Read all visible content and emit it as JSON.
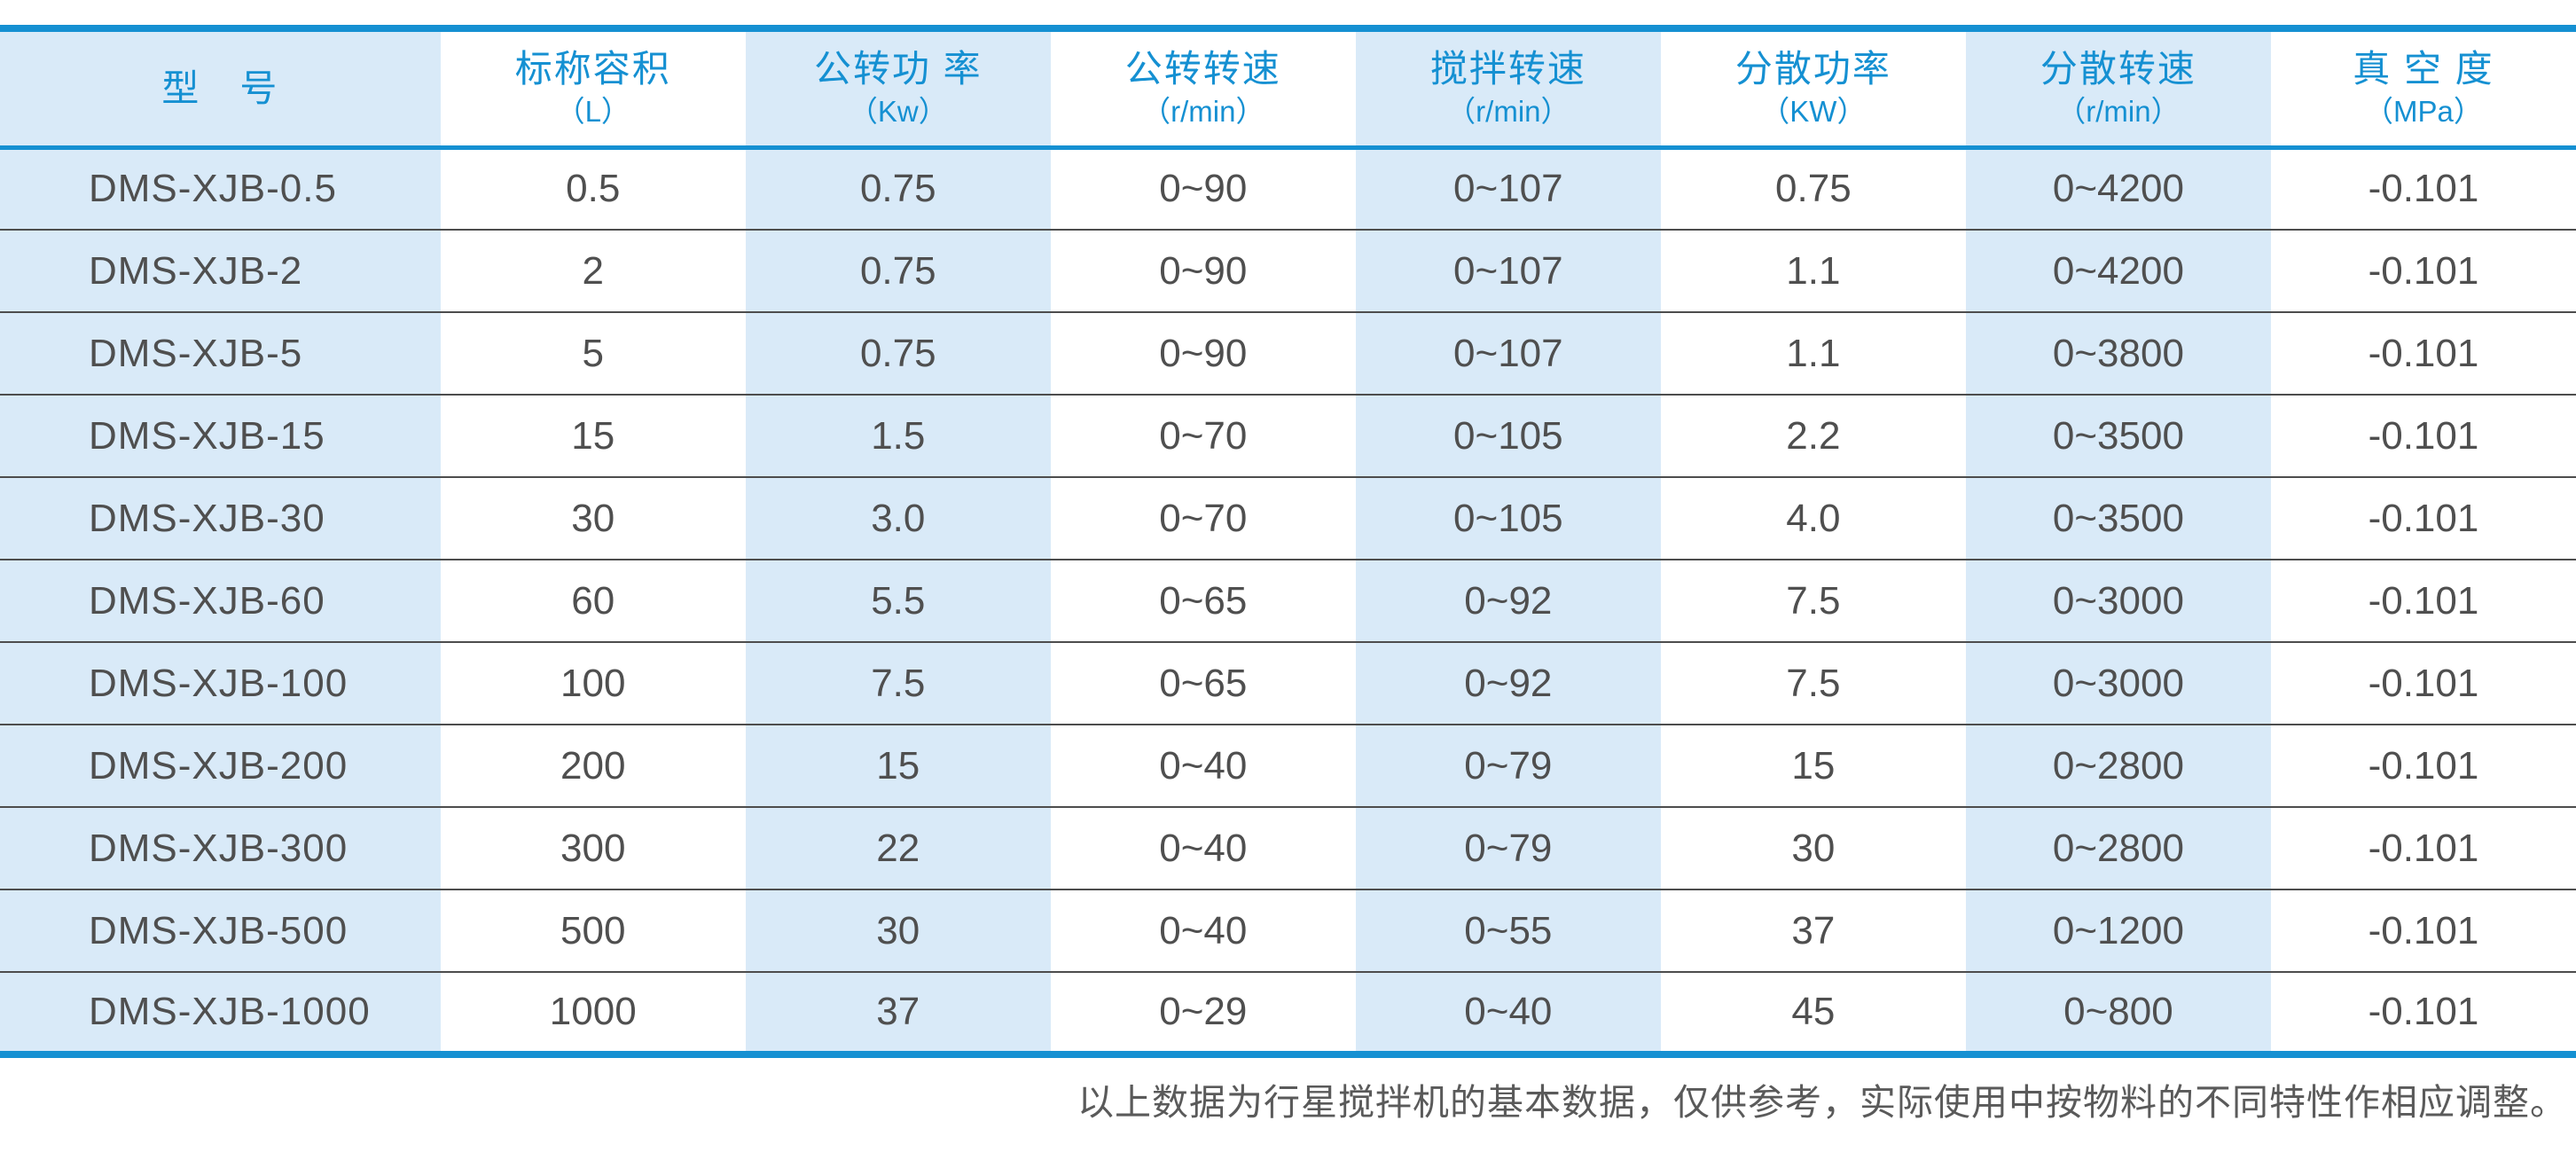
{
  "colors": {
    "accent_blue": "#1590d2",
    "stripe_lightblue": "#d9eaf8",
    "data_text": "#4f4f4f",
    "row_separator": "#4d4d4d"
  },
  "table": {
    "columns": [
      {
        "label": "型　号",
        "unit": ""
      },
      {
        "label": "标称容积",
        "unit": "（L）"
      },
      {
        "label": "公转功 率",
        "unit": "（Kw）"
      },
      {
        "label": "公转转速",
        "unit": "（r/min）"
      },
      {
        "label": "搅拌转速",
        "unit": "（r/min）"
      },
      {
        "label": "分散功率",
        "unit": "（KW）"
      },
      {
        "label": "分散转速",
        "unit": "（r/min）"
      },
      {
        "label": "真 空 度",
        "unit": "（MPa）"
      }
    ],
    "rows": [
      [
        "DMS-XJB-0.5",
        "0.5",
        "0.75",
        "0~90",
        "0~107",
        "0.75",
        "0~4200",
        "-0.101"
      ],
      [
        "DMS-XJB-2",
        "2",
        "0.75",
        "0~90",
        "0~107",
        "1.1",
        "0~4200",
        "-0.101"
      ],
      [
        "DMS-XJB-5",
        "5",
        "0.75",
        "0~90",
        "0~107",
        "1.1",
        "0~3800",
        "-0.101"
      ],
      [
        "DMS-XJB-15",
        "15",
        "1.5",
        "0~70",
        "0~105",
        "2.2",
        "0~3500",
        "-0.101"
      ],
      [
        "DMS-XJB-30",
        "30",
        "3.0",
        "0~70",
        "0~105",
        "4.0",
        "0~3500",
        "-0.101"
      ],
      [
        "DMS-XJB-60",
        "60",
        "5.5",
        "0~65",
        "0~92",
        "7.5",
        "0~3000",
        "-0.101"
      ],
      [
        "DMS-XJB-100",
        "100",
        "7.5",
        "0~65",
        "0~92",
        "7.5",
        "0~3000",
        "-0.101"
      ],
      [
        "DMS-XJB-200",
        "200",
        "15",
        "0~40",
        "0~79",
        "15",
        "0~2800",
        "-0.101"
      ],
      [
        "DMS-XJB-300",
        "300",
        "22",
        "0~40",
        "0~79",
        "30",
        "0~2800",
        "-0.101"
      ],
      [
        "DMS-XJB-500",
        "500",
        "30",
        "0~40",
        "0~55",
        "37",
        "0~1200",
        "-0.101"
      ],
      [
        "DMS-XJB-1000",
        "1000",
        "37",
        "0~29",
        "0~40",
        "45",
        "0~800",
        "-0.101"
      ]
    ]
  },
  "footer": {
    "note": "以上数据为行星搅拌机的基本数据，仅供参考，实际使用中按物料的不同特性作相应调整。"
  }
}
